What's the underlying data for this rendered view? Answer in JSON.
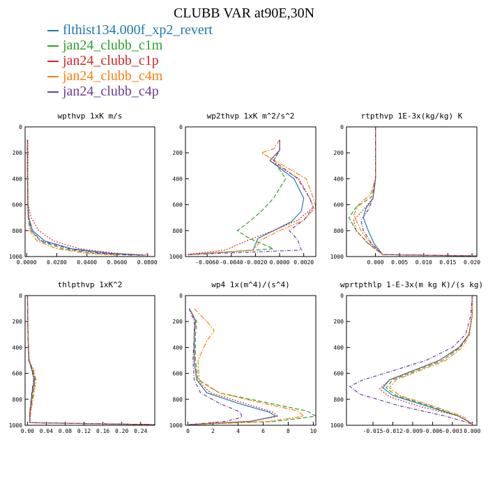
{
  "title": "CLUBB VAR at90E,30N",
  "legend": [
    {
      "label": "flthist134.000f_xp2_revert",
      "color": "#1f77b4"
    },
    {
      "label": "jan24_clubb_c1m",
      "color": "#2ca02c"
    },
    {
      "label": "jan24_clubb_c1p",
      "color": "#d62728"
    },
    {
      "label": "jan24_clubb_c4m",
      "color": "#ff7f0e"
    },
    {
      "label": "jan24_clubb_c4p",
      "color": "#6a3d9a"
    }
  ],
  "chart_data": [
    {
      "type": "line",
      "title": "wpthvp  1xK m/s",
      "xlim": [
        -0.001,
        0.085
      ],
      "ylim": [
        1000,
        0
      ],
      "xticks": [
        "0.0000",
        "0.0200",
        "0.0400",
        "0.0600",
        "0.0800"
      ],
      "xtick_values": [
        0,
        0.02,
        0.04,
        0.06,
        0.08
      ],
      "yticks": [
        "0",
        "200",
        "400",
        "600",
        "800",
        "1000"
      ],
      "series": [
        {
          "color": "#1f77b4",
          "x": [
            0.0005,
            0.0005,
            0.0006,
            0.0008,
            0.0015,
            0.004,
            0.012,
            0.03,
            0.055,
            0.078
          ],
          "y": [
            100,
            200,
            400,
            600,
            700,
            800,
            880,
            940,
            975,
            990
          ]
        },
        {
          "color": "#2ca02c",
          "x": [
            0.0005,
            0.0005,
            0.0006,
            0.0008,
            0.0015,
            0.003,
            0.009,
            0.024,
            0.045,
            0.07
          ],
          "y": [
            100,
            200,
            400,
            600,
            700,
            800,
            880,
            940,
            975,
            990
          ]
        },
        {
          "color": "#d62728",
          "x": [
            0.0008,
            0.001,
            0.0008,
            0.001,
            0.003,
            0.008,
            0.018,
            0.035,
            0.06,
            0.082
          ],
          "y": [
            100,
            200,
            400,
            600,
            700,
            800,
            880,
            940,
            975,
            990
          ]
        },
        {
          "color": "#ff7f0e",
          "x": [
            0.0005,
            0.0005,
            0.0005,
            0.0006,
            0.001,
            0.002,
            0.007,
            0.02,
            0.04,
            0.06
          ],
          "y": [
            100,
            200,
            400,
            600,
            700,
            800,
            880,
            940,
            975,
            990
          ]
        },
        {
          "color": "#6a3d9a",
          "x": [
            0.0005,
            0.0005,
            0.0006,
            0.0008,
            0.0012,
            0.003,
            0.01,
            0.028,
            0.05,
            0.075
          ],
          "y": [
            100,
            200,
            400,
            600,
            700,
            800,
            880,
            940,
            975,
            990
          ]
        }
      ]
    },
    {
      "type": "line",
      "title": "wp2thvp  1xK m^2/s^2",
      "xlim": [
        -0.0078,
        0.003
      ],
      "ylim": [
        1000,
        0
      ],
      "xticks": [
        "-0.0060",
        "-0.0040",
        "-0.0020",
        "0.0000",
        "0.0020"
      ],
      "xtick_values": [
        -0.006,
        -0.004,
        -0.002,
        0,
        0.002
      ],
      "yticks": [
        "0",
        "200",
        "400",
        "600",
        "800",
        "1000"
      ],
      "series": [
        {
          "color": "#1f77b4",
          "x": [
            0.0,
            0.0,
            -0.0008,
            0.0012,
            0.002,
            0.0018,
            0.001,
            -0.0005,
            -0.0018,
            -0.0022,
            -0.0075
          ],
          "y": [
            100,
            180,
            260,
            400,
            550,
            650,
            730,
            800,
            860,
            950,
            985
          ]
        },
        {
          "color": "#2ca02c",
          "x": [
            0.0,
            0.0,
            -0.0005,
            0.0005,
            -0.0005,
            -0.0015,
            -0.0025,
            -0.0035,
            -0.0025,
            -0.0005,
            -0.0076
          ],
          "y": [
            100,
            180,
            260,
            400,
            550,
            650,
            730,
            800,
            860,
            940,
            985
          ]
        },
        {
          "color": "#d62728",
          "x": [
            0.0,
            0.0,
            -0.0008,
            0.0016,
            0.0025,
            0.0028,
            0.0015,
            -0.0005,
            -0.0025,
            -0.0045,
            -0.0078
          ],
          "y": [
            100,
            180,
            260,
            400,
            550,
            620,
            720,
            800,
            870,
            950,
            985
          ]
        },
        {
          "color": "#ff7f0e",
          "x": [
            0.0,
            -0.0005,
            -0.0015,
            0.0022,
            0.0028,
            0.003,
            0.002,
            0.0,
            -0.0015,
            -0.0022,
            -0.0074
          ],
          "y": [
            100,
            170,
            200,
            400,
            550,
            620,
            720,
            800,
            870,
            950,
            985
          ]
        },
        {
          "color": "#6a3d9a",
          "x": [
            0.0,
            0.0,
            -0.0005,
            0.0015,
            0.0025,
            0.0028,
            0.002,
            0.0008,
            0.0015,
            0.0018,
            -0.0076
          ],
          "y": [
            100,
            180,
            260,
            400,
            550,
            620,
            720,
            800,
            870,
            950,
            985
          ]
        }
      ]
    },
    {
      "type": "line",
      "title": "rtpthvp  1E-3x(kg/kg) K",
      "xlim": [
        -0.006,
        0.021
      ],
      "ylim": [
        1000,
        0
      ],
      "xticks": [
        "0.000",
        "0.005",
        "0.010",
        "0.015",
        "0.020"
      ],
      "xtick_values": [
        0,
        0.005,
        0.01,
        0.015,
        0.02
      ],
      "yticks": [
        "0",
        "200",
        "400",
        "600",
        "800",
        "1000"
      ],
      "series": [
        {
          "color": "#1f77b4",
          "x": [
            0.0,
            0.0,
            -0.0005,
            -0.002,
            -0.0025,
            -0.0015,
            -0.0003,
            0.0015,
            0.021
          ],
          "y": [
            0,
            400,
            550,
            630,
            700,
            800,
            900,
            985,
            995
          ]
        },
        {
          "color": "#2ca02c",
          "x": [
            0.0,
            0.0,
            -0.0008,
            -0.004,
            -0.0055,
            -0.004,
            -0.0015,
            0.0015,
            0.021
          ],
          "y": [
            0,
            400,
            540,
            620,
            700,
            800,
            900,
            985,
            995
          ]
        },
        {
          "color": "#d62728",
          "x": [
            0.0,
            0.0,
            -0.0005,
            -0.0025,
            -0.0045,
            -0.004,
            -0.0015,
            0.0015,
            0.021
          ],
          "y": [
            0,
            400,
            550,
            640,
            720,
            800,
            900,
            985,
            995
          ]
        },
        {
          "color": "#ff7f0e",
          "x": [
            0.0,
            0.0,
            -0.001,
            -0.0035,
            -0.0045,
            -0.003,
            -0.001,
            0.0015,
            0.021
          ],
          "y": [
            0,
            400,
            520,
            600,
            680,
            800,
            900,
            985,
            995
          ]
        },
        {
          "color": "#6a3d9a",
          "x": [
            0.0,
            0.0,
            -0.0005,
            -0.0015,
            -0.003,
            -0.0025,
            -0.0008,
            0.0015,
            0.021
          ],
          "y": [
            0,
            400,
            550,
            640,
            720,
            800,
            900,
            985,
            995
          ]
        }
      ]
    },
    {
      "type": "line",
      "title": "thlpthvp  1xK^2",
      "xlim": [
        -0.005,
        0.27
      ],
      "ylim": [
        1000,
        0
      ],
      "xticks": [
        "0.00",
        "0.04",
        "0.08",
        "0.12",
        "0.16",
        "0.20",
        "0.24"
      ],
      "xtick_values": [
        0,
        0.04,
        0.08,
        0.12,
        0.16,
        0.2,
        0.24
      ],
      "yticks": [
        "0",
        "200",
        "400",
        "600",
        "800",
        "1000"
      ],
      "series": [
        {
          "color": "#1f77b4",
          "x": [
            0.0,
            0.001,
            0.003,
            0.01,
            0.015,
            0.01,
            0.005,
            0.005,
            0.27
          ],
          "y": [
            0,
            300,
            500,
            580,
            650,
            750,
            900,
            980,
            995
          ]
        },
        {
          "color": "#2ca02c",
          "x": [
            0.0,
            0.001,
            0.003,
            0.012,
            0.016,
            0.012,
            0.006,
            0.005,
            0.27
          ],
          "y": [
            0,
            300,
            500,
            580,
            650,
            750,
            900,
            980,
            995
          ]
        },
        {
          "color": "#d62728",
          "x": [
            0.0,
            0.001,
            0.003,
            0.011,
            0.015,
            0.01,
            0.005,
            0.005,
            0.27
          ],
          "y": [
            0,
            300,
            500,
            580,
            650,
            750,
            900,
            980,
            995
          ]
        },
        {
          "color": "#ff7f0e",
          "x": [
            0.0,
            0.001,
            0.004,
            0.014,
            0.018,
            0.014,
            0.007,
            0.005,
            0.27
          ],
          "y": [
            0,
            300,
            500,
            580,
            650,
            750,
            900,
            980,
            995
          ]
        },
        {
          "color": "#6a3d9a",
          "x": [
            0.0,
            0.001,
            0.003,
            0.01,
            0.013,
            0.009,
            0.005,
            0.005,
            0.27
          ],
          "y": [
            0,
            300,
            500,
            580,
            650,
            750,
            900,
            980,
            995
          ]
        }
      ]
    },
    {
      "type": "line",
      "title": "wp4  1x(m^4)/(s^4)",
      "xlim": [
        -0.2,
        10.2
      ],
      "ylim": [
        1000,
        0
      ],
      "xticks": [
        "0",
        "2",
        "4",
        "6",
        "8",
        "10"
      ],
      "xtick_values": [
        0,
        2,
        4,
        6,
        8,
        10
      ],
      "yticks": [
        "0",
        "200",
        "400",
        "600",
        "800",
        "1000"
      ],
      "series": [
        {
          "color": "#1f77b4",
          "x": [
            0.1,
            0.4,
            0.6,
            0.5,
            0.5,
            0.7,
            1.5,
            4.0,
            6.5,
            7.0,
            5.0,
            0.1
          ],
          "y": [
            100,
            150,
            200,
            300,
            500,
            650,
            750,
            830,
            900,
            930,
            970,
            995
          ]
        },
        {
          "color": "#2ca02c",
          "x": [
            0.1,
            0.4,
            0.7,
            0.6,
            0.6,
            0.8,
            2.5,
            6.5,
            9.5,
            10.2,
            7.0,
            0.1
          ],
          "y": [
            100,
            150,
            200,
            300,
            500,
            650,
            750,
            830,
            890,
            930,
            970,
            995
          ]
        },
        {
          "color": "#d62728",
          "x": [
            0.1,
            0.4,
            0.6,
            0.5,
            0.5,
            0.7,
            1.8,
            4.5,
            6.8,
            7.2,
            5.0,
            0.1
          ],
          "y": [
            100,
            150,
            200,
            300,
            500,
            650,
            750,
            830,
            900,
            930,
            970,
            995
          ]
        },
        {
          "color": "#ff7f0e",
          "x": [
            0.5,
            1.5,
            2.1,
            1.5,
            0.8,
            0.9,
            2.5,
            6.0,
            8.8,
            9.2,
            6.5,
            0.1
          ],
          "y": [
            100,
            200,
            270,
            350,
            500,
            650,
            750,
            830,
            890,
            930,
            970,
            995
          ]
        },
        {
          "color": "#6a3d9a",
          "x": [
            0.1,
            0.3,
            0.5,
            0.5,
            0.4,
            0.5,
            1.0,
            2.5,
            4.2,
            4.3,
            3.0,
            0.1
          ],
          "y": [
            100,
            150,
            200,
            300,
            500,
            650,
            750,
            830,
            900,
            940,
            970,
            995
          ]
        }
      ]
    },
    {
      "type": "line",
      "title": "wprtpthlp  1-E-3x(m kg K)/(s kg)",
      "xlim": [
        -0.019,
        0.0007
      ],
      "ylim": [
        1000,
        0
      ],
      "xticks": [
        "-0.015",
        "-0.012",
        "-0.009",
        "-0.006",
        "-0.003",
        "0.000"
      ],
      "xtick_values": [
        -0.015,
        -0.012,
        -0.009,
        -0.006,
        -0.003,
        0
      ],
      "yticks": [
        "0",
        "200",
        "400",
        "600",
        "800",
        "1000"
      ],
      "series": [
        {
          "color": "#1f77b4",
          "x": [
            0.0,
            0.0,
            -0.0005,
            -0.002,
            -0.005,
            -0.009,
            -0.0125,
            -0.0135,
            -0.012,
            -0.007,
            -0.002,
            0.0
          ],
          "y": [
            0,
            150,
            300,
            400,
            500,
            580,
            650,
            710,
            770,
            850,
            930,
            990
          ]
        },
        {
          "color": "#2ca02c",
          "x": [
            0.0,
            0.0,
            -0.0005,
            -0.0018,
            -0.0045,
            -0.0085,
            -0.012,
            -0.013,
            -0.0115,
            -0.0065,
            -0.002,
            0.0
          ],
          "y": [
            0,
            150,
            300,
            400,
            500,
            580,
            650,
            710,
            770,
            850,
            930,
            990
          ]
        },
        {
          "color": "#d62728",
          "x": [
            0.0,
            0.0,
            -0.0005,
            -0.002,
            -0.005,
            -0.009,
            -0.0125,
            -0.014,
            -0.0125,
            -0.0075,
            -0.002,
            0.0
          ],
          "y": [
            0,
            150,
            300,
            400,
            500,
            580,
            650,
            720,
            780,
            860,
            930,
            990
          ]
        },
        {
          "color": "#ff7f0e",
          "x": [
            0.0,
            0.0,
            -0.0004,
            -0.0015,
            -0.004,
            -0.008,
            -0.0115,
            -0.0125,
            -0.011,
            -0.006,
            -0.0015,
            0.0
          ],
          "y": [
            0,
            150,
            300,
            400,
            500,
            580,
            650,
            710,
            770,
            850,
            930,
            990
          ]
        },
        {
          "color": "#6a3d9a",
          "x": [
            0.0,
            -0.0002,
            -0.001,
            -0.003,
            -0.007,
            -0.012,
            -0.0165,
            -0.0185,
            -0.017,
            -0.011,
            -0.004,
            0.0
          ],
          "y": [
            0,
            150,
            300,
            400,
            500,
            580,
            650,
            700,
            760,
            850,
            930,
            990
          ]
        }
      ]
    }
  ]
}
